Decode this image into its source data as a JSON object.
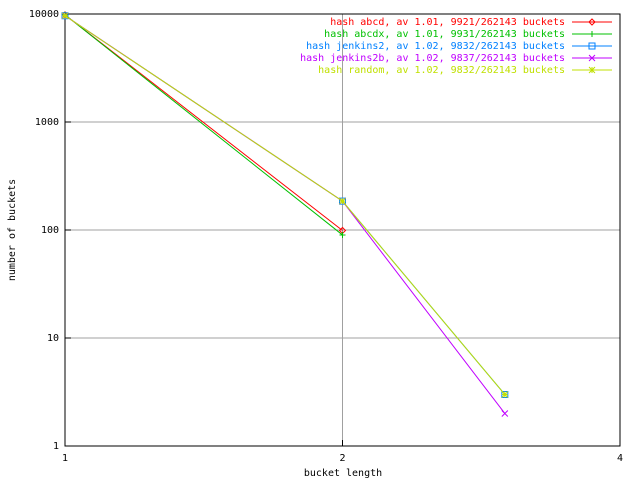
{
  "chart_data": {
    "type": "line",
    "xlabel": "bucket length",
    "ylabel": "number of buckets",
    "x": [
      1,
      2,
      3
    ],
    "xlim": [
      1,
      4
    ],
    "xticks": [
      1,
      2,
      4
    ],
    "xscale": "log",
    "ylim": [
      1,
      10000
    ],
    "yticks": [
      1,
      10,
      100,
      1000,
      10000
    ],
    "yscale": "log",
    "grid": true,
    "legend": "top-right",
    "series": [
      {
        "name": "hash abcd, av 1.01, 9921/262143 buckets",
        "color": "#ff0000",
        "marker": "diamond",
        "values": [
          9822,
          99,
          null
        ]
      },
      {
        "name": "hash abcdx, av 1.01, 9931/262143 buckets",
        "color": "#00c000",
        "marker": "plus",
        "values": [
          9841,
          90,
          null
        ]
      },
      {
        "name": "hash jenkins2, av 1.02, 9832/262143 buckets",
        "color": "#0080ff",
        "marker": "square",
        "values": [
          9644,
          185,
          3
        ]
      },
      {
        "name": "hash jenkins2b, av 1.02, 9837/262143 buckets",
        "color": "#c000ff",
        "marker": "cross",
        "values": [
          9650,
          185,
          2
        ]
      },
      {
        "name": "hash random, av 1.02, 9832/262143 buckets",
        "color": "#c0e000",
        "marker": "star",
        "values": [
          9644,
          185,
          3
        ]
      }
    ]
  }
}
